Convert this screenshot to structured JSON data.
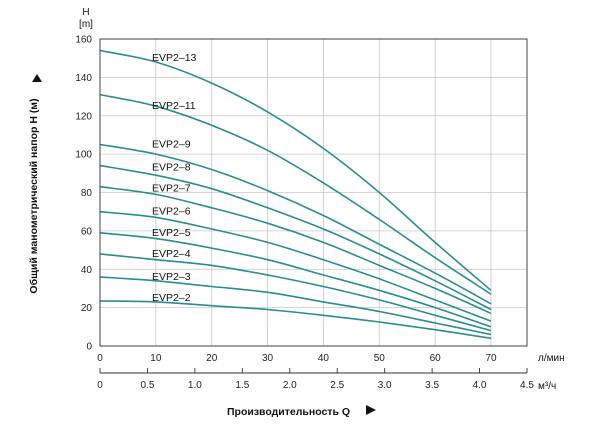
{
  "chart_data": {
    "type": "line",
    "title": "",
    "ylabel": "Общий манометрический напор H (м)",
    "xlabel": "Производительность Q",
    "y_unit_top": "H",
    "y_unit_bottom": "[m]",
    "x_unit_lpm": "л/мин",
    "x_unit_m3h": "м³/ч",
    "ylim": [
      0,
      160
    ],
    "xlim_lpm": [
      0,
      70
    ],
    "xlim_m3h": [
      0,
      4.5
    ],
    "y_ticks": [
      "0",
      "20",
      "40",
      "60",
      "80",
      "100",
      "120",
      "140",
      "160"
    ],
    "x_ticks_lpm": [
      "0",
      "10",
      "20",
      "30",
      "40",
      "50",
      "60",
      "70"
    ],
    "x_ticks_m3h": [
      "0",
      "0.5",
      "1.0",
      "1.5",
      "2.0",
      "2.5",
      "3.0",
      "3.5",
      "4.0",
      "4.5"
    ],
    "grid": true,
    "line_color": "#2a8d90",
    "x_lpm": [
      0,
      10,
      20,
      30,
      40,
      50,
      60,
      70
    ],
    "series": [
      {
        "name": "EVP2–13",
        "values": [
          154,
          148,
          137,
          122,
          103,
          80,
          54,
          29
        ]
      },
      {
        "name": "EVP2–11",
        "values": [
          131,
          125,
          115,
          102,
          85,
          66,
          46,
          27
        ]
      },
      {
        "name": "EVP2–9",
        "values": [
          105,
          100,
          92,
          81,
          68,
          53,
          38,
          22
        ]
      },
      {
        "name": "EVP2–8",
        "values": [
          94,
          89,
          82,
          72,
          61,
          48,
          34,
          19
        ]
      },
      {
        "name": "EVP2–7",
        "values": [
          83,
          79,
          72,
          64,
          54,
          42,
          30,
          17
        ]
      },
      {
        "name": "EVP2–6",
        "values": [
          70,
          67,
          61,
          54,
          45,
          35,
          24,
          13
        ]
      },
      {
        "name": "EVP2–5",
        "values": [
          59,
          56,
          51,
          45,
          37,
          29,
          20,
          10
        ]
      },
      {
        "name": "EVP2–4",
        "values": [
          48,
          45,
          42,
          37,
          31,
          24,
          16,
          8
        ]
      },
      {
        "name": "EVP2–3",
        "values": [
          36,
          34,
          31,
          28,
          23,
          18,
          12,
          6
        ]
      },
      {
        "name": "EVP2–2",
        "values": [
          23.5,
          23,
          21,
          19,
          16,
          12.5,
          8.5,
          4
        ]
      }
    ],
    "label_values": [
      150,
      125,
      105,
      93,
      82,
      70,
      59,
      48,
      36,
      25
    ]
  }
}
